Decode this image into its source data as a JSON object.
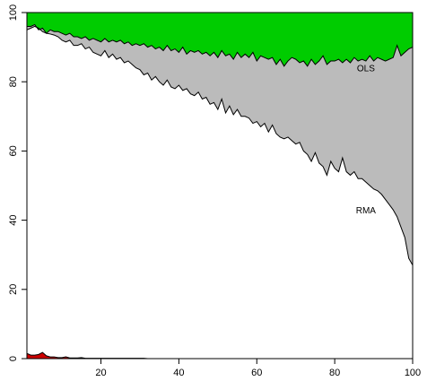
{
  "chart_data": {
    "type": "area",
    "title": "",
    "xlabel": "",
    "ylabel": "",
    "xlim": [
      1,
      100
    ],
    "ylim": [
      0,
      100
    ],
    "x_ticks": [
      20,
      40,
      60,
      80,
      100
    ],
    "y_ticks": [
      0,
      20,
      40,
      60,
      80,
      100
    ],
    "grid": false,
    "legend": "none",
    "annotations": [
      {
        "text": "OLS",
        "x": 88,
        "y": 83
      },
      {
        "text": "RMA",
        "x": 88,
        "y": 42
      }
    ],
    "x_start": 1,
    "series": [
      {
        "color": "#cc0000",
        "values": [
          1.5,
          1,
          1,
          1.2,
          1.8,
          0.8,
          0.5,
          0.5,
          0.3,
          0.3,
          0.5,
          0.2,
          0.2,
          0.2,
          0.3,
          0.1,
          0.1,
          0.1,
          0.1,
          0.1,
          0.1,
          0.1,
          0.1,
          0.1,
          0.1,
          0.1,
          0.1,
          0.1,
          0.1,
          0.1,
          0.1,
          0,
          0,
          0,
          0,
          0,
          0,
          0,
          0,
          0,
          0,
          0,
          0,
          0,
          0,
          0,
          0,
          0,
          0,
          0,
          0,
          0,
          0,
          0,
          0,
          0,
          0,
          0,
          0,
          0,
          0,
          0,
          0,
          0,
          0,
          0,
          0,
          0,
          0,
          0,
          0,
          0,
          0,
          0,
          0,
          0,
          0,
          0,
          0,
          0,
          0,
          0,
          0,
          0,
          0,
          0,
          0,
          0,
          0,
          0,
          0,
          0,
          0,
          0,
          0,
          0,
          0,
          0,
          0,
          0
        ]
      },
      {
        "color": "#ffffff",
        "values": [
          95,
          95.5,
          96,
          95.5,
          94.5,
          94,
          93.8,
          93.5,
          93,
          92,
          91.5,
          92,
          90.5,
          90.5,
          91,
          89.5,
          90,
          88.5,
          88,
          87.5,
          89,
          87,
          88,
          86.5,
          87,
          85.5,
          86,
          85,
          84,
          83.5,
          82,
          82.5,
          80.5,
          81.5,
          80,
          79,
          80.5,
          78.5,
          78,
          79,
          77.5,
          78,
          76.5,
          76,
          77,
          75,
          75.5,
          73.5,
          74,
          72,
          75,
          71,
          73,
          70.5,
          72,
          70,
          70,
          69.5,
          68,
          68.5,
          67,
          68,
          65.5,
          67.5,
          65,
          64,
          63.5,
          64,
          63,
          62,
          62.5,
          60,
          59,
          57,
          59.5,
          56.5,
          55.5,
          53,
          57,
          55,
          54,
          58,
          54,
          53,
          54,
          52,
          52,
          51,
          50,
          49,
          48.5,
          47.5,
          46,
          44.5,
          43,
          41,
          38,
          35,
          29,
          27,
          22
        ]
      },
      {
        "color": "#bbbbbb",
        "values": [
          96,
          96,
          96.5,
          95,
          95.5,
          94,
          95,
          94.5,
          94.5,
          94,
          93.5,
          94,
          93,
          93,
          92.5,
          93,
          92,
          92.5,
          92,
          91.5,
          92.5,
          91.5,
          92,
          91.5,
          92,
          91,
          91.5,
          90.5,
          91,
          90.5,
          91,
          90,
          90.5,
          89.5,
          90,
          89,
          90.5,
          89,
          89.5,
          88.5,
          90,
          88,
          89,
          88.5,
          89,
          88,
          88.5,
          87.5,
          88.5,
          87,
          89,
          87.5,
          88,
          86.5,
          88.5,
          87,
          88,
          87,
          88.5,
          86,
          87.5,
          87,
          86.5,
          87,
          85,
          86.5,
          84.5,
          86,
          87,
          86.5,
          85.5,
          86,
          84.5,
          86.5,
          85,
          86,
          87.5,
          85,
          86,
          86,
          86.5,
          85.5,
          86.5,
          85.5,
          87,
          86,
          86.5,
          86,
          87.5,
          86,
          87,
          86.5,
          86,
          86.5,
          87,
          90.5,
          87.5,
          88.5,
          89.5,
          90,
          90.5
        ]
      },
      {
        "color": "#00cc00",
        "values": [
          100,
          100,
          100,
          100,
          100,
          100,
          100,
          100,
          100,
          100,
          100,
          100,
          100,
          100,
          100,
          100,
          100,
          100,
          100,
          100,
          100,
          100,
          100,
          100,
          100,
          100,
          100,
          100,
          100,
          100,
          100,
          100,
          100,
          100,
          100,
          100,
          100,
          100,
          100,
          100,
          100,
          100,
          100,
          100,
          100,
          100,
          100,
          100,
          100,
          100,
          100,
          100,
          100,
          100,
          100,
          100,
          100,
          100,
          100,
          100,
          100,
          100,
          100,
          100,
          100,
          100,
          100,
          100,
          100,
          100,
          100,
          100,
          100,
          100,
          100,
          100,
          100,
          100,
          100,
          100,
          100,
          100,
          100,
          100,
          100,
          100,
          100,
          100,
          100,
          100,
          100,
          100,
          100,
          100,
          100,
          100,
          100,
          100,
          100,
          100
        ]
      }
    ]
  }
}
